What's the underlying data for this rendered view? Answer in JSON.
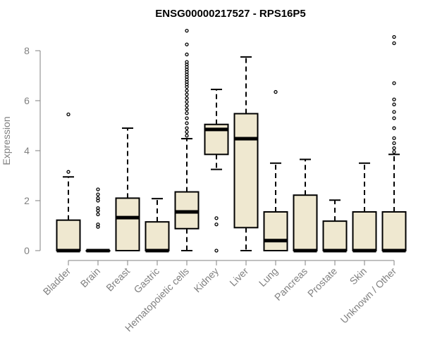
{
  "chart_data": {
    "type": "box",
    "title": "ENSG00000217527 - RPS16P5",
    "ylabel": "Expression",
    "xlabel": "",
    "ylim": [
      0,
      8.8
    ],
    "yticks": [
      0,
      2,
      4,
      6,
      8
    ],
    "box_fill": "#efe8d0",
    "stroke": "#000000",
    "axis_color": "#808080",
    "categories": [
      "Bladder",
      "Brain",
      "Breast",
      "Gastric",
      "Hematopoietic cells",
      "Kidney",
      "Liver",
      "Lung",
      "Pancreas",
      "Prostate",
      "Skin",
      "Unknown / Other"
    ],
    "boxes": [
      {
        "category": "Bladder",
        "whisker_low": 0,
        "q1": 0,
        "median": 0,
        "q3": 1.22,
        "whisker_high": 2.95,
        "outliers": [
          3.15,
          5.45
        ]
      },
      {
        "category": "Brain",
        "whisker_low": 0,
        "q1": 0,
        "median": 0,
        "q3": 0,
        "whisker_high": 0,
        "outliers": [
          0.95,
          1.05,
          1.45,
          1.6,
          1.7,
          2.0,
          2.1,
          2.25,
          2.45
        ]
      },
      {
        "category": "Breast",
        "whisker_low": 0,
        "q1": 0,
        "median": 1.32,
        "q3": 2.1,
        "whisker_high": 4.9,
        "outliers": []
      },
      {
        "category": "Gastric",
        "whisker_low": 0,
        "q1": 0,
        "median": 0,
        "q3": 1.15,
        "whisker_high": 2.08,
        "outliers": []
      },
      {
        "category": "Hematopoietic cells",
        "whisker_low": 0,
        "q1": 0.88,
        "median": 1.55,
        "q3": 2.35,
        "whisker_high": 4.48,
        "outliers": [
          4.6,
          4.75,
          4.9,
          5.1,
          5.3,
          5.5,
          5.65,
          5.8,
          5.95,
          6.1,
          6.25,
          6.4,
          6.55,
          6.65,
          6.75,
          6.85,
          6.95,
          7.05,
          7.15,
          7.25,
          7.35,
          7.45,
          7.55,
          7.85,
          8.25,
          8.8
        ]
      },
      {
        "category": "Kidney",
        "whisker_low": 3.25,
        "q1": 3.85,
        "median": 4.85,
        "q3": 5.05,
        "whisker_high": 6.45,
        "outliers": [
          0,
          1.05,
          1.3
        ]
      },
      {
        "category": "Liver",
        "whisker_low": 0,
        "q1": 0.92,
        "median": 4.48,
        "q3": 5.48,
        "whisker_high": 7.75,
        "outliers": []
      },
      {
        "category": "Lung",
        "whisker_low": 0,
        "q1": 0,
        "median": 0.4,
        "q3": 1.55,
        "whisker_high": 3.5,
        "outliers": [
          6.35
        ]
      },
      {
        "category": "Pancreas",
        "whisker_low": 0,
        "q1": 0,
        "median": 0,
        "q3": 2.22,
        "whisker_high": 3.65,
        "outliers": []
      },
      {
        "category": "Prostate",
        "whisker_low": 0,
        "q1": 0,
        "median": 0,
        "q3": 1.18,
        "whisker_high": 2.02,
        "outliers": []
      },
      {
        "category": "Skin",
        "whisker_low": 0,
        "q1": 0,
        "median": 0,
        "q3": 1.55,
        "whisker_high": 3.5,
        "outliers": []
      },
      {
        "category": "Unknown / Other",
        "whisker_low": 0,
        "q1": 0,
        "median": 0,
        "q3": 1.55,
        "whisker_high": 3.85,
        "outliers": [
          3.95,
          4.1,
          4.3,
          4.5,
          4.9,
          5.3,
          5.55,
          5.85,
          6.05,
          6.7,
          8.3,
          8.55
        ]
      }
    ]
  }
}
